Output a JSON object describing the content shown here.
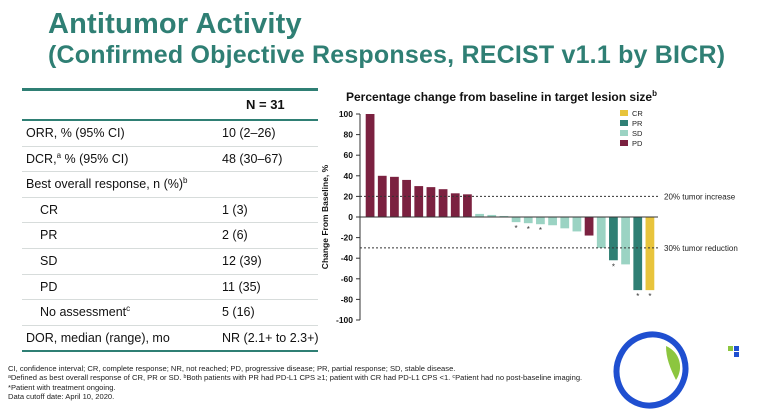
{
  "title": {
    "line1": "Antitumor Activity",
    "line2": "(Confirmed Objective Responses, RECIST v1.1 by BICR)"
  },
  "table": {
    "column_header": "N = 31",
    "rows": [
      {
        "label": "ORR, % (95% CI)",
        "sup": "",
        "label_suffix": "",
        "value": "10 (2–26)",
        "indent": false
      },
      {
        "label": "DCR,",
        "sup": "a",
        "label_suffix": " % (95% CI)",
        "value": "48 (30–67)",
        "indent": false
      },
      {
        "label": "Best overall response, n (%)",
        "sup": "b",
        "label_suffix": "",
        "value": "",
        "indent": false
      },
      {
        "label": "CR",
        "sup": "",
        "label_suffix": "",
        "value": "1 (3)",
        "indent": true
      },
      {
        "label": "PR",
        "sup": "",
        "label_suffix": "",
        "value": "2 (6)",
        "indent": true
      },
      {
        "label": "SD",
        "sup": "",
        "label_suffix": "",
        "value": "12 (39)",
        "indent": true
      },
      {
        "label": "PD",
        "sup": "",
        "label_suffix": "",
        "value": "11 (35)",
        "indent": true
      },
      {
        "label": "No assessment",
        "sup": "c",
        "label_suffix": "",
        "value": "5 (16)",
        "indent": true
      },
      {
        "label": "DOR, median (range), mo",
        "sup": "",
        "label_suffix": "",
        "value": "NR (2.1+ to 2.3+)",
        "indent": false
      }
    ]
  },
  "chart_data": {
    "type": "bar",
    "title": "Percentage change from baseline in target lesion size",
    "title_sup": "b",
    "ylabel": "Change From Baseline, %",
    "ylim": [
      -100,
      100
    ],
    "yticks": [
      100,
      80,
      60,
      40,
      20,
      0,
      -20,
      -40,
      -60,
      -80,
      -100
    ],
    "legend": [
      {
        "label": "CR",
        "color": "#e8c43c"
      },
      {
        "label": "PR",
        "color": "#2f7f74"
      },
      {
        "label": "SD",
        "color": "#9bd3c3"
      },
      {
        "label": "PD",
        "color": "#7b2140"
      }
    ],
    "legend_position": "top-right",
    "reference_lines": [
      {
        "y": 20,
        "label": "20% tumor increase"
      },
      {
        "y": -30,
        "label": "30% tumor reduction"
      }
    ],
    "bars": [
      {
        "value": 100,
        "response": "PD",
        "ongoing": false
      },
      {
        "value": 40,
        "response": "PD",
        "ongoing": false
      },
      {
        "value": 39,
        "response": "PD",
        "ongoing": false
      },
      {
        "value": 36,
        "response": "PD",
        "ongoing": false
      },
      {
        "value": 30,
        "response": "PD",
        "ongoing": false
      },
      {
        "value": 29,
        "response": "PD",
        "ongoing": false
      },
      {
        "value": 27,
        "response": "PD",
        "ongoing": false
      },
      {
        "value": 23,
        "response": "PD",
        "ongoing": false
      },
      {
        "value": 22,
        "response": "PD",
        "ongoing": false
      },
      {
        "value": 3,
        "response": "SD",
        "ongoing": false
      },
      {
        "value": 2,
        "response": "SD",
        "ongoing": false
      },
      {
        "value": 1,
        "response": "SD",
        "ongoing": false
      },
      {
        "value": -5,
        "response": "SD",
        "ongoing": true
      },
      {
        "value": -6,
        "response": "SD",
        "ongoing": true
      },
      {
        "value": -7,
        "response": "SD",
        "ongoing": true
      },
      {
        "value": -8,
        "response": "SD",
        "ongoing": false
      },
      {
        "value": -11,
        "response": "SD",
        "ongoing": false
      },
      {
        "value": -14,
        "response": "SD",
        "ongoing": false
      },
      {
        "value": -18,
        "response": "PD",
        "ongoing": false
      },
      {
        "value": -30,
        "response": "SD",
        "ongoing": false
      },
      {
        "value": -42,
        "response": "PR",
        "ongoing": true
      },
      {
        "value": -46,
        "response": "SD",
        "ongoing": false
      },
      {
        "value": -71,
        "response": "PR",
        "ongoing": true
      },
      {
        "value": -71,
        "response": "CR",
        "ongoing": true
      }
    ]
  },
  "footnotes": [
    "CI, confidence interval; CR, complete response; NR, not reached; PD, progressive disease; PR, partial response; SD, stable disease.",
    "ᵃDefined as best overall response of CR, PR or SD. ᵇBoth patients with PR had PD-L1 CPS ≥1; patient with CR had PD-L1 CPS <1. ᶜPatient had no post-baseline imaging.",
    "*Patient with treatment ongoing.",
    "Data cutoff date: April 10, 2020."
  ],
  "colors": {
    "accent": "#2f7f74",
    "logo_ring": "#1f4fd0",
    "logo_leaf": "#8cc63f"
  }
}
